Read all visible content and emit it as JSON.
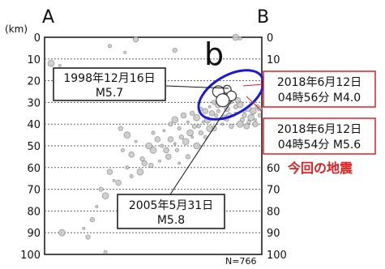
{
  "chart_data": {
    "type": "scatter",
    "title": "",
    "ylabel": "(km)",
    "ylim": [
      0,
      100
    ],
    "y_ticks": [
      "0",
      "10",
      "20",
      "30",
      "40",
      "50",
      "60",
      "70",
      "80",
      "90",
      "100"
    ],
    "y_inverted": true,
    "grid": true,
    "section_ends": {
      "left": "A",
      "right": "B"
    },
    "region_label": "b",
    "count_label": "N=766",
    "colors": {
      "points": "#888888",
      "ellipse": "#1a1ad0",
      "red_box": "#e02020",
      "grid": "#666666"
    },
    "series": [
      {
        "points": [
          [
            0.07,
            13
          ],
          [
            0.1,
            16
          ],
          [
            0.03,
            12
          ],
          [
            0.3,
            4
          ],
          [
            0.42,
            1
          ],
          [
            0.37,
            7
          ],
          [
            0.6,
            6
          ],
          [
            0.88,
            0
          ],
          [
            0.9,
            0.5
          ],
          [
            0.14,
            22
          ],
          [
            0.2,
            26
          ],
          [
            0.35,
            42
          ],
          [
            0.38,
            45
          ],
          [
            0.36,
            52
          ],
          [
            0.4,
            54
          ],
          [
            0.42,
            48
          ],
          [
            0.45,
            56
          ],
          [
            0.48,
            50
          ],
          [
            0.5,
            44
          ],
          [
            0.52,
            47
          ],
          [
            0.55,
            43
          ],
          [
            0.58,
            40
          ],
          [
            0.6,
            38
          ],
          [
            0.62,
            42
          ],
          [
            0.64,
            36
          ],
          [
            0.66,
            39
          ],
          [
            0.68,
            35
          ],
          [
            0.7,
            37
          ],
          [
            0.72,
            33
          ],
          [
            0.74,
            34
          ],
          [
            0.76,
            32
          ],
          [
            0.78,
            30
          ],
          [
            0.8,
            31
          ],
          [
            0.82,
            29
          ],
          [
            0.84,
            33
          ],
          [
            0.86,
            30
          ],
          [
            0.88,
            32
          ],
          [
            0.9,
            31
          ],
          [
            0.92,
            34
          ],
          [
            0.94,
            33
          ],
          [
            0.96,
            35
          ],
          [
            0.98,
            32
          ],
          [
            0.75,
            38
          ],
          [
            0.79,
            36
          ],
          [
            0.83,
            37
          ],
          [
            0.87,
            36
          ],
          [
            0.91,
            38
          ],
          [
            0.95,
            37
          ],
          [
            0.99,
            36
          ],
          [
            0.56,
            52
          ],
          [
            0.6,
            49
          ],
          [
            0.63,
            46
          ],
          [
            0.67,
            44
          ],
          [
            0.71,
            41
          ],
          [
            0.3,
            62
          ],
          [
            0.32,
            66
          ],
          [
            0.26,
            70
          ],
          [
            0.28,
            73
          ],
          [
            0.38,
            60
          ],
          [
            0.46,
            58
          ],
          [
            0.62,
            58
          ],
          [
            0.66,
            55
          ],
          [
            0.7,
            50
          ],
          [
            0.74,
            46
          ],
          [
            0.78,
            42
          ],
          [
            0.82,
            40
          ],
          [
            0.86,
            41
          ],
          [
            0.9,
            40
          ],
          [
            0.94,
            39
          ],
          [
            0.97,
            40
          ],
          [
            0.18,
            88
          ],
          [
            0.2,
            92
          ],
          [
            0.08,
            90
          ],
          [
            0.28,
            99
          ],
          [
            0.85,
            36
          ],
          [
            0.88,
            35
          ],
          [
            0.92,
            36
          ],
          [
            0.96,
            34
          ],
          [
            0.8,
            34
          ],
          [
            0.77,
            35
          ],
          [
            0.73,
            39
          ],
          [
            0.69,
            41
          ],
          [
            0.65,
            48
          ],
          [
            0.61,
            52
          ],
          [
            0.57,
            55
          ],
          [
            0.53,
            57
          ],
          [
            0.49,
            59
          ],
          [
            0.44,
            62
          ],
          [
            0.4,
            64
          ],
          [
            0.34,
            67
          ],
          [
            0.24,
            78
          ],
          [
            0.22,
            84
          ],
          [
            0.5,
            52
          ],
          [
            0.54,
            50
          ],
          [
            0.58,
            47
          ],
          [
            0.68,
            46
          ],
          [
            0.72,
            44
          ],
          [
            0.76,
            42
          ],
          [
            0.84,
            38
          ],
          [
            0.93,
            41
          ],
          [
            0.97,
            38
          ],
          [
            0.99,
            33
          ],
          [
            0.81,
            28
          ],
          [
            0.85,
            27
          ],
          [
            0.89,
            29
          ],
          [
            0.79,
            27
          ],
          [
            0.83,
            25
          ]
        ]
      }
    ],
    "highlighted_events": [
      {
        "x": 0.84,
        "y": 24,
        "label_date": "2018年6月12日",
        "label_time": "04時56分 M4.0"
      },
      {
        "x": 0.86,
        "y": 27,
        "label_date": "2018年6月12日",
        "label_time": "04時54分 M5.6"
      },
      {
        "x": 0.8,
        "y": 25,
        "label_date": "1998年12月16日",
        "label_time": "M5.7"
      },
      {
        "x": 0.82,
        "y": 29,
        "label_date": "2005年5月31日",
        "label_time": "M5.8"
      }
    ],
    "annotation_current": "今回の地震"
  }
}
